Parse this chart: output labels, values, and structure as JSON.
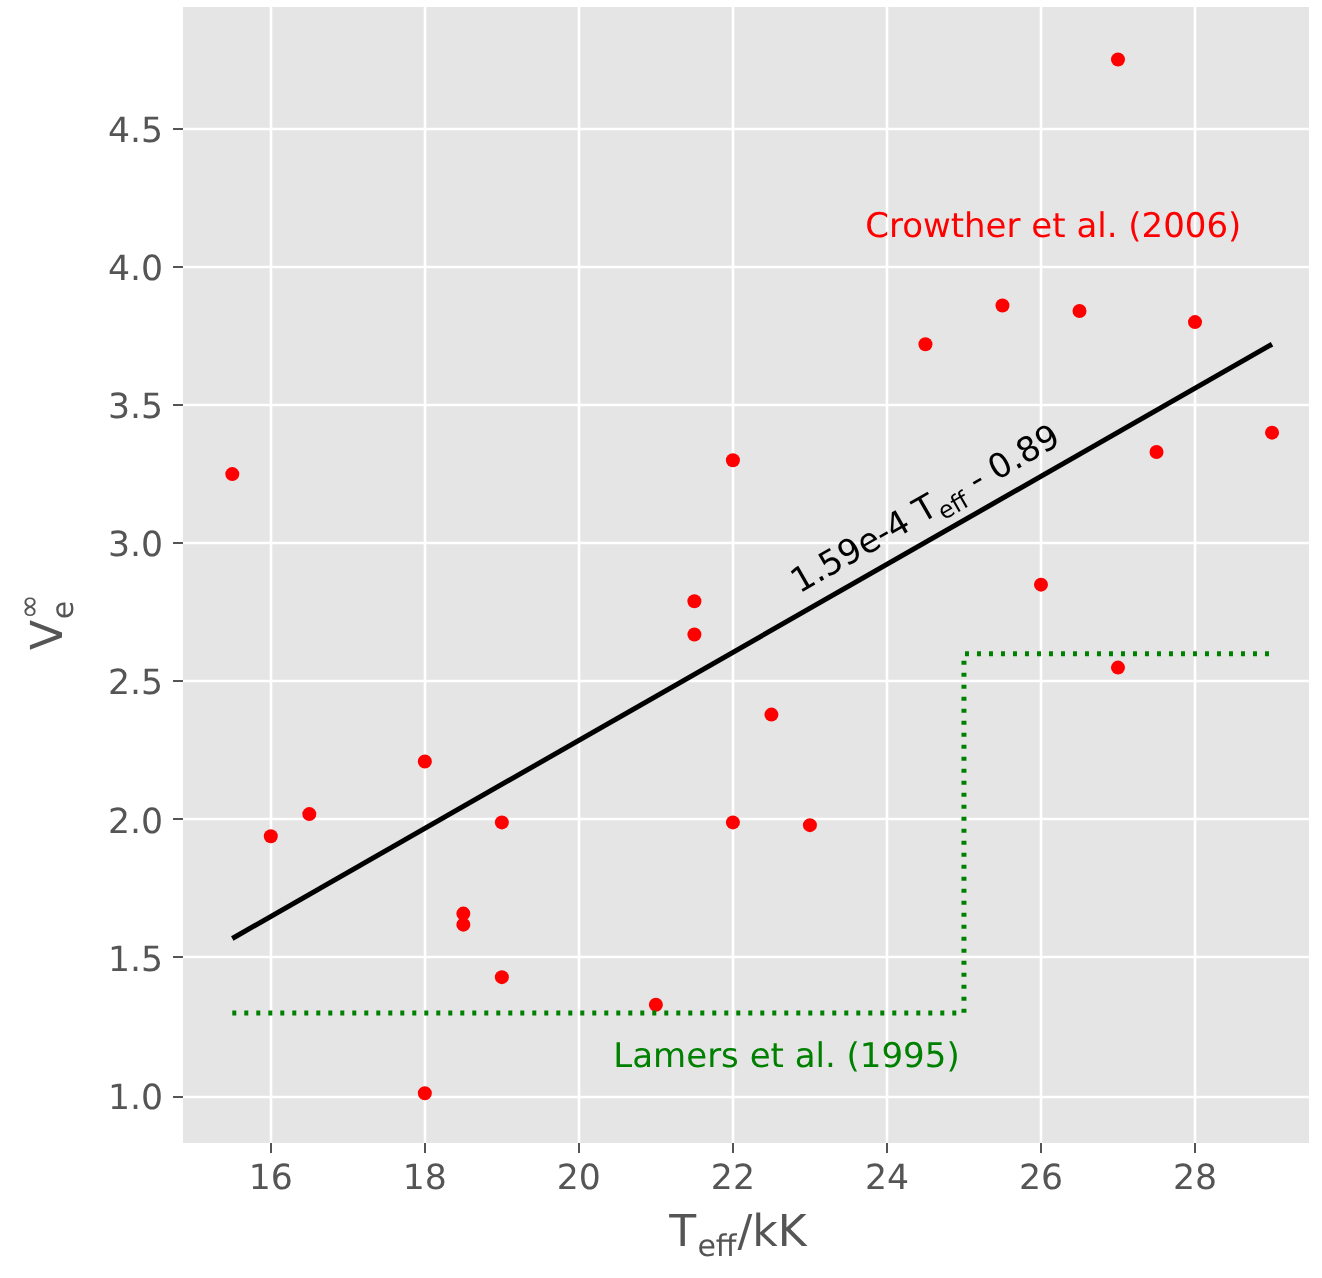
{
  "chart_data": {
    "type": "scatter",
    "xlabel": "T$_{eff}$/kK",
    "ylabel": "V$_{e}$$^{∞}$",
    "xlim": [
      14.86,
      29.48
    ],
    "ylim": [
      0.83,
      4.94
    ],
    "xticks": [
      16,
      18,
      20,
      22,
      24,
      26,
      28
    ],
    "yticks": [
      {
        "value": 1.0,
        "label": "1.0"
      },
      1.5,
      {
        "value": 2.0,
        "label": "2.0"
      },
      2.5,
      {
        "value": 3.0,
        "label": "3.0"
      },
      3.5,
      {
        "value": 4.0,
        "label": "4.0"
      },
      4.5
    ],
    "grid": true,
    "series": [
      {
        "name": "Crowther et al. (2006)",
        "color": "#ff0000",
        "marker": "circle",
        "x": [
          15.5,
          16,
          16.5,
          18,
          18,
          18.5,
          18.5,
          19,
          19,
          21,
          21.5,
          21.5,
          22,
          22,
          22.5,
          23,
          24.5,
          25.5,
          26,
          26.5,
          27,
          27,
          27.5,
          28,
          29
        ],
        "values": [
          3.25,
          1.94,
          2.02,
          2.21,
          1.01,
          1.66,
          1.62,
          1.99,
          1.43,
          1.33,
          2.79,
          2.67,
          3.3,
          1.99,
          2.38,
          1.98,
          3.72,
          3.86,
          2.85,
          3.84,
          4.75,
          2.55,
          3.33,
          3.8,
          3.4
        ]
      },
      {
        "type": "line",
        "color": "#000000",
        "line_style": "solid",
        "x": [
          15.5,
          29
        ],
        "values": [
          1.57,
          3.72
        ]
      },
      {
        "type": "step",
        "name": "Lamers et al. (1995)",
        "color": "#008000",
        "line_style": "dotted",
        "x": [
          15.5,
          25,
          29
        ],
        "values": [
          1.3,
          2.6,
          2.6
        ]
      }
    ],
    "annotations": [
      "1.59e-4 T$_{eff}$ - 0.89"
    ]
  }
}
